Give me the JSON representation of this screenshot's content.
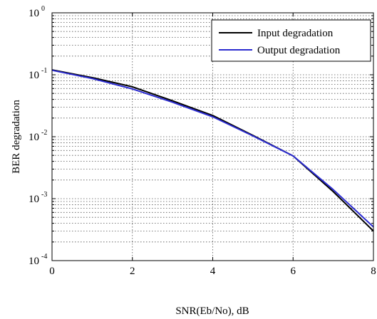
{
  "chart_data": {
    "type": "line",
    "title": "",
    "xlabel": "SNR(Eb/No), dB",
    "ylabel": "BER degradation",
    "xlim": [
      0,
      8
    ],
    "ylim": [
      0.0001,
      1
    ],
    "yscale": "log",
    "grid": true,
    "legend_position": "top-right",
    "x_ticks": [
      0,
      2,
      4,
      6,
      8
    ],
    "y_ticks": [
      {
        "base": "10",
        "exp": "-4"
      },
      {
        "base": "10",
        "exp": "-3"
      },
      {
        "base": "10",
        "exp": "-2"
      },
      {
        "base": "10",
        "exp": "-1"
      },
      {
        "base": "10",
        "exp": "0"
      }
    ],
    "series": [
      {
        "name": "Input degradation",
        "color": "#000000",
        "x": [
          0,
          1,
          2,
          3,
          4,
          5,
          6,
          7,
          8
        ],
        "y": [
          0.12,
          0.09,
          0.064,
          0.038,
          0.022,
          0.0105,
          0.0049,
          0.0013,
          0.0003
        ]
      },
      {
        "name": "Output degradation",
        "color": "#2b2bd0",
        "x": [
          0,
          1,
          2,
          3,
          4,
          5,
          6,
          7,
          8
        ],
        "y": [
          0.118,
          0.087,
          0.059,
          0.036,
          0.021,
          0.0103,
          0.0049,
          0.0014,
          0.00035
        ]
      }
    ]
  }
}
